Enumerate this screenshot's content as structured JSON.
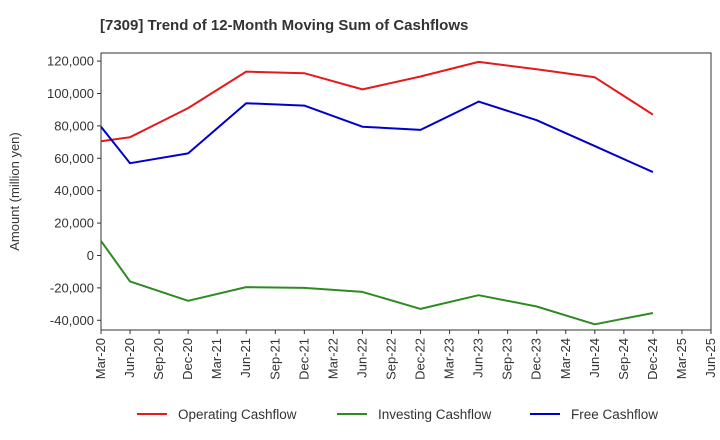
{
  "chart_data": {
    "type": "line",
    "title": "[7309]  Trend of 12-Month Moving Sum of Cashflows",
    "ylabel": "Amount (million yen)",
    "xlabel": "",
    "categories": [
      "Mar-20",
      "Jun-20",
      "Sep-20",
      "Dec-20",
      "Mar-21",
      "Jun-21",
      "Sep-21",
      "Dec-21",
      "Mar-22",
      "Jun-22",
      "Sep-22",
      "Dec-22",
      "Mar-23",
      "Jun-23",
      "Sep-23",
      "Dec-23",
      "Mar-24",
      "Jun-24",
      "Sep-24",
      "Dec-24",
      "Mar-25",
      "Jun-25"
    ],
    "ylim": [
      -46000,
      125000
    ],
    "yticks": [
      -40000,
      -20000,
      0,
      20000,
      40000,
      60000,
      80000,
      100000,
      120000
    ],
    "ytick_labels": [
      "-40,000",
      "-20,000",
      "0",
      "20,000",
      "40,000",
      "60,000",
      "80,000",
      "100,000",
      "120,000"
    ],
    "grid": true,
    "legend_position": "bottom",
    "series": [
      {
        "name": "Operating Cashflow",
        "color": "#e41a1c",
        "values": [
          70500,
          73000,
          null,
          91000,
          null,
          113500,
          null,
          112500,
          null,
          102500,
          null,
          110500,
          null,
          119500,
          null,
          115000,
          null,
          110000,
          null,
          87000,
          null,
          null
        ]
      },
      {
        "name": "Investing Cashflow",
        "color": "#2e8b22",
        "values": [
          9000,
          -16000,
          null,
          -28000,
          null,
          -19500,
          null,
          -20000,
          null,
          -22500,
          null,
          -33000,
          null,
          -24500,
          null,
          -31500,
          null,
          -42500,
          null,
          -35500,
          null,
          null
        ]
      },
      {
        "name": "Free Cashflow",
        "color": "#0000cc",
        "values": [
          79500,
          57000,
          null,
          63000,
          null,
          94000,
          null,
          92500,
          null,
          79500,
          null,
          77500,
          null,
          95000,
          null,
          83500,
          null,
          67500,
          null,
          51500,
          null,
          null
        ]
      }
    ]
  }
}
